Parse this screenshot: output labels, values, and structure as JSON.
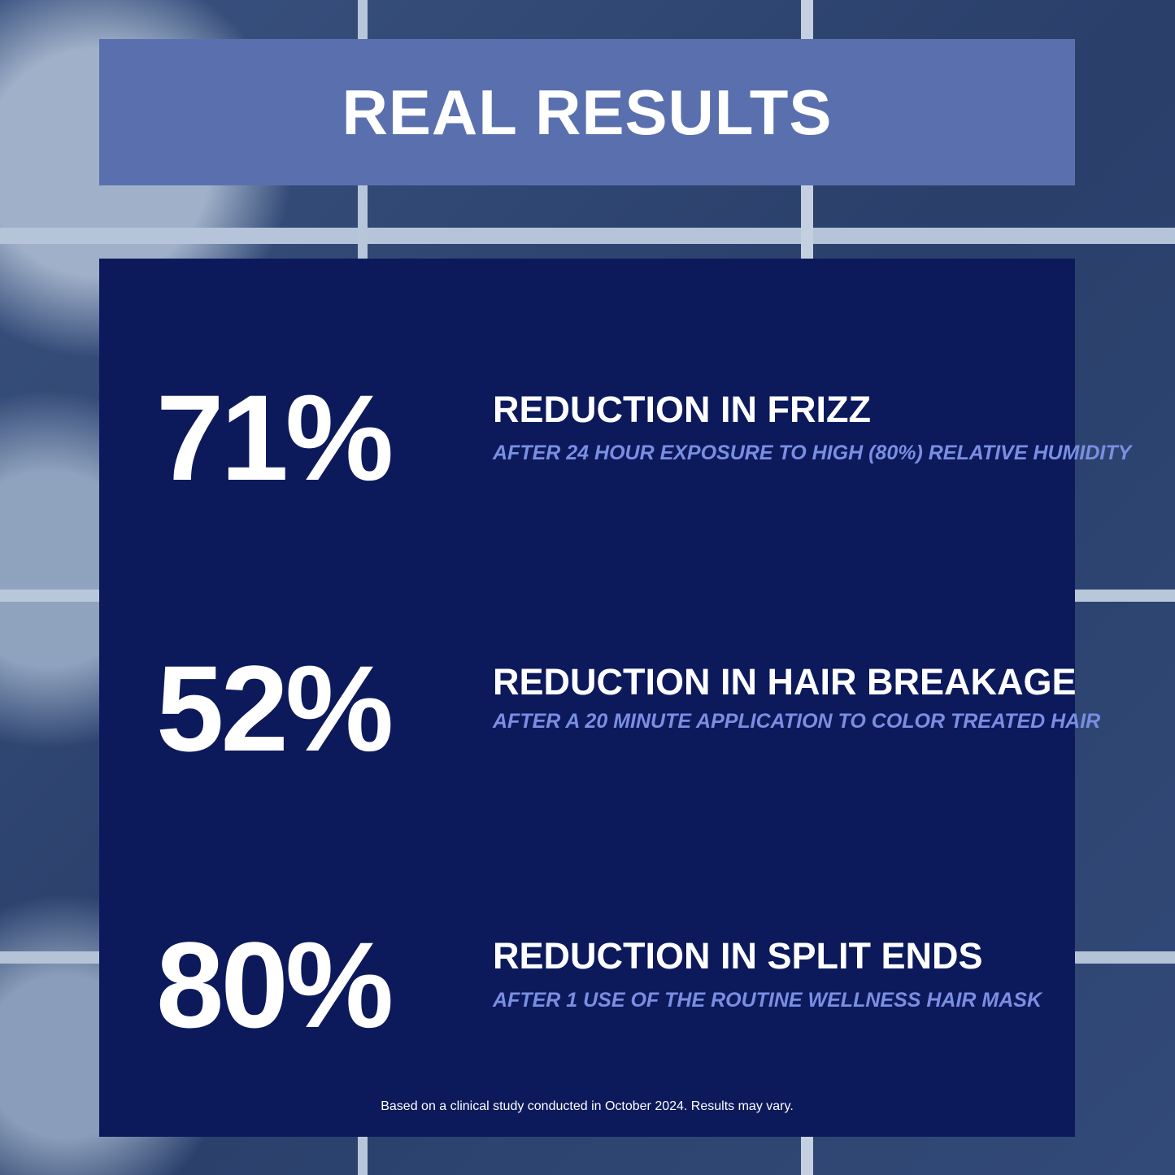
{
  "header": {
    "title": "REAL RESULTS"
  },
  "stats": [
    {
      "value": "71%",
      "label": "REDUCTION IN FRIZZ",
      "detail": "AFTER 24 HOUR EXPOSURE TO HIGH (80%) RELATIVE HUMIDITY"
    },
    {
      "value": "52%",
      "label": "REDUCTION IN HAIR BREAKAGE",
      "detail": "AFTER A 20 MINUTE APPLICATION TO COLOR TREATED HAIR"
    },
    {
      "value": "80%",
      "label": "REDUCTION IN SPLIT ENDS",
      "detail": "AFTER 1 USE OF THE ROUTINE WELLNESS HAIR MASK"
    }
  ],
  "footnote": "Based on a clinical study conducted in October 2024. Results may vary.",
  "colors": {
    "header_bg": "#5a70ae",
    "panel_bg": "#0c1a5c",
    "detail_text": "#7a8ee2"
  }
}
